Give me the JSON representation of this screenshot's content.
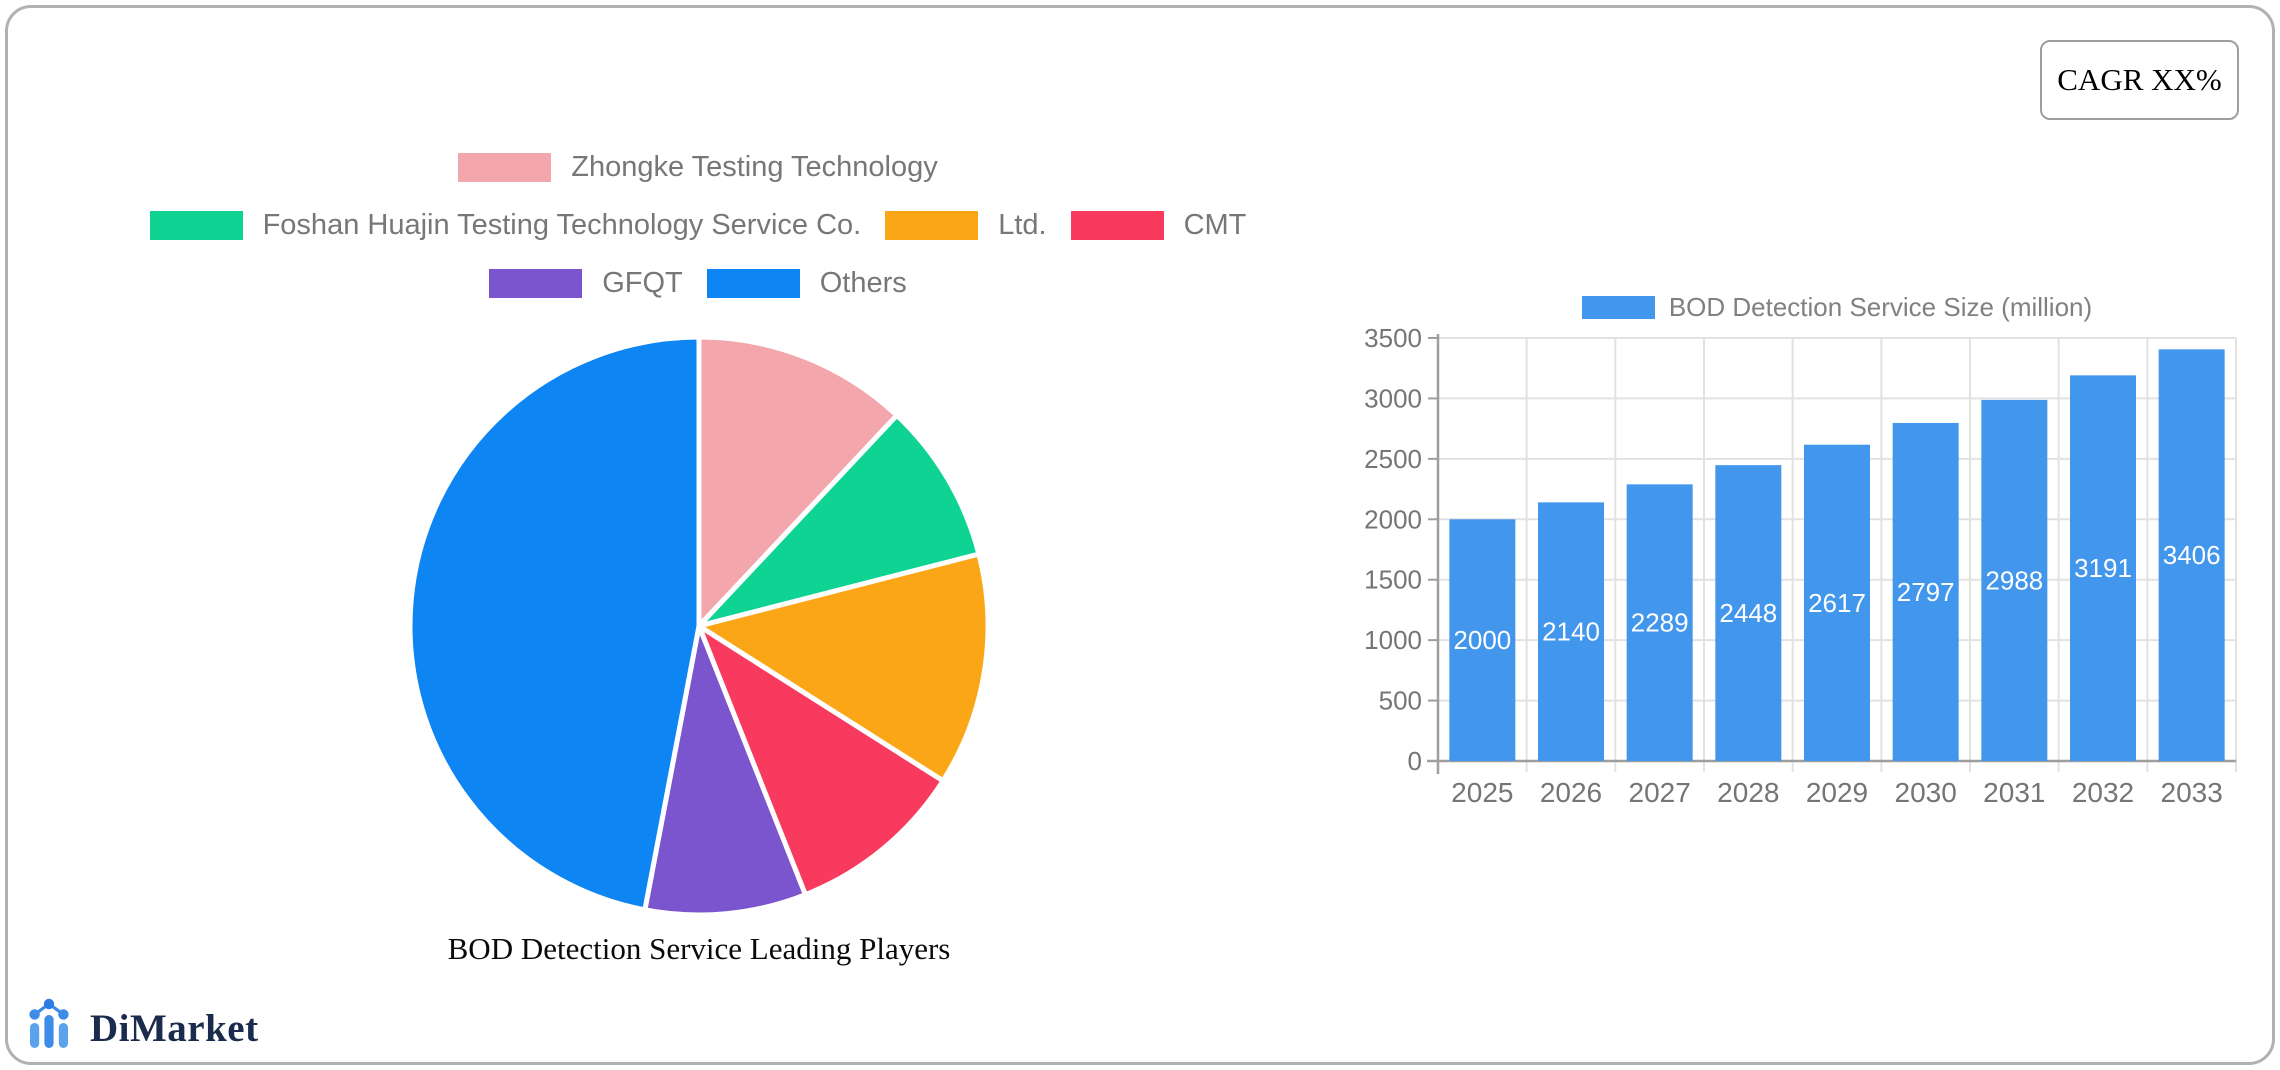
{
  "header": {
    "cagr_label": "CAGR XX%"
  },
  "footer": {
    "logo_text": "DiMarket"
  },
  "chart_data": [
    {
      "type": "pie",
      "title": "BOD Detection Service Leading Players",
      "labels": [
        "Zhongke Testing Technology",
        "Foshan Huajin Testing Technology Service Co.",
        "Ltd.",
        "CMT",
        "GFQT",
        "Others"
      ],
      "values": [
        12,
        9,
        13,
        10,
        9,
        47
      ],
      "colors": [
        "#f3a6ab",
        "#0fd392",
        "#fba617",
        "#f83a5e",
        "#7a55cd",
        "#0d85f3"
      ],
      "legend_rows": [
        [
          0
        ],
        [
          1,
          2,
          3
        ],
        [
          4,
          5
        ]
      ],
      "legend_text_color": "#777777",
      "start_angle_deg": 0,
      "direction": "clockwise",
      "slice_border_color": "#ffffff"
    },
    {
      "type": "bar",
      "legend": "BOD Detection Service Size (million)",
      "categories": [
        "2025",
        "2026",
        "2027",
        "2028",
        "2029",
        "2030",
        "2031",
        "2032",
        "2033"
      ],
      "values": [
        2000,
        2140,
        2289,
        2448,
        2617,
        2797,
        2988,
        3191,
        3406
      ],
      "ylim": [
        0,
        3500
      ],
      "ytick_step": 500,
      "yticks": [
        0,
        500,
        1000,
        1500,
        2000,
        2500,
        3000,
        3500
      ],
      "bar_color": "#4296ec",
      "value_label_color": "#ffffff",
      "axis_text_color": "#757575",
      "grid": true,
      "legend_position": "top"
    }
  ]
}
